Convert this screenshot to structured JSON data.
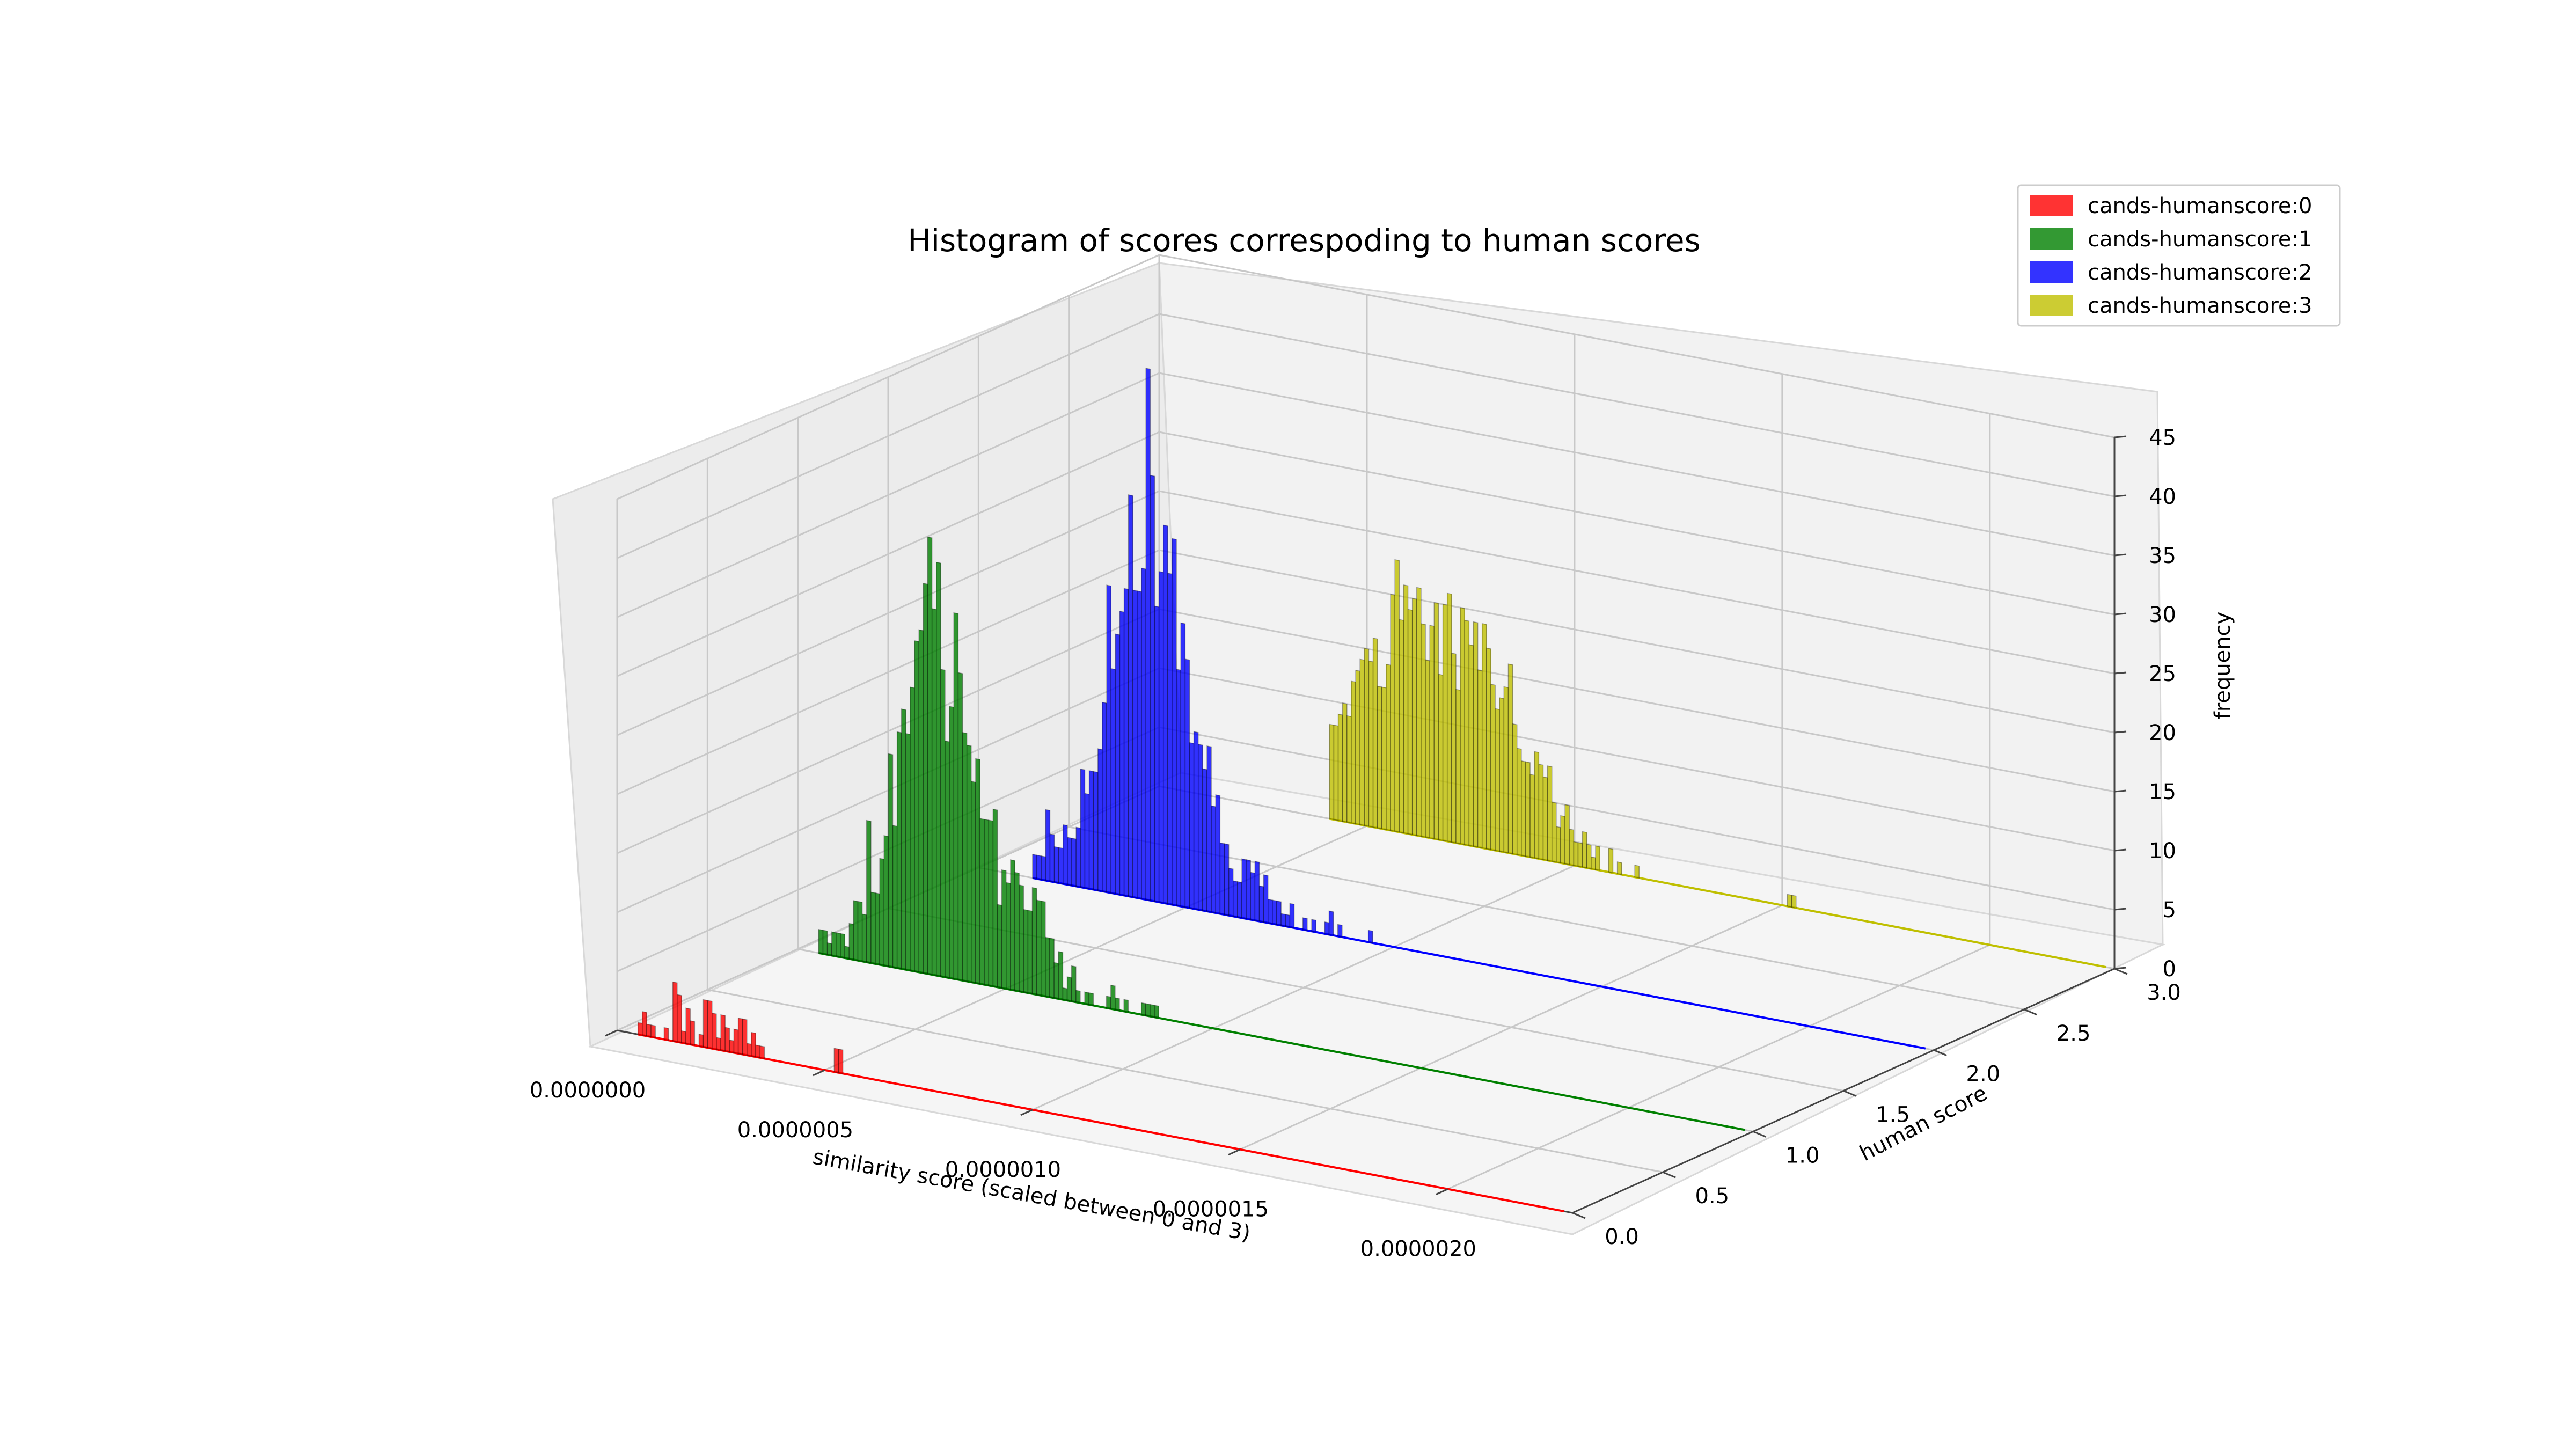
{
  "chart_data": {
    "type": "bar",
    "title": "Histogram of scores correspoding to human scores",
    "xlabel": "similarity score (scaled between 0 and 3)",
    "ylabel": "human score",
    "zlabel": "frequency",
    "xlim": [
      0,
      2.3e-06
    ],
    "ylim": [
      0,
      3
    ],
    "zlim": [
      0,
      45
    ],
    "xticks": [
      "0.0000000",
      "0.0000005",
      "0.0000010",
      "0.0000015",
      "0.0000020"
    ],
    "xtick_values": [
      0,
      5e-07,
      1e-06,
      1.5e-06,
      2e-06
    ],
    "yticks": [
      "0.0",
      "0.5",
      "1.0",
      "1.5",
      "2.0",
      "2.5",
      "3.0"
    ],
    "ytick_values": [
      0,
      0.5,
      1,
      1.5,
      2,
      2.5,
      3
    ],
    "zticks": [
      "0",
      "5",
      "10",
      "15",
      "20",
      "25",
      "30",
      "35",
      "40",
      "45"
    ],
    "ztick_values": [
      0,
      5,
      10,
      15,
      20,
      25,
      30,
      35,
      40,
      45
    ],
    "legend_position": "top-right",
    "series": [
      {
        "name": "cands-humanscore:0",
        "color": "#ff0000",
        "human_score": 0,
        "bin_start": 5e-08,
        "bin_width": 1.05e-08,
        "line_end": 2.28e-06,
        "counts": [
          1,
          2,
          1,
          1,
          0,
          0,
          1,
          0,
          5,
          4,
          1,
          3,
          2,
          0,
          1,
          4,
          4,
          3,
          1,
          3,
          2,
          1,
          2,
          3,
          3,
          1,
          2,
          1,
          1,
          0,
          0,
          0,
          0,
          0,
          0,
          0,
          0,
          0,
          0,
          0,
          0,
          0,
          0,
          0,
          0,
          2,
          2
        ]
      },
      {
        "name": "cands-humanscore:1",
        "color": "#008000",
        "human_score": 1,
        "bin_start": 5e-08,
        "bin_width": 1.05e-08,
        "line_end": 2.28e-06,
        "counts": [
          2,
          2,
          1,
          2,
          2,
          2,
          1,
          3,
          5,
          5,
          4,
          12,
          6,
          6,
          9,
          11,
          18,
          12,
          20,
          22,
          20,
          24,
          28,
          29,
          33,
          37,
          31,
          35,
          26,
          20,
          23,
          31,
          26,
          21,
          20,
          17,
          19,
          14,
          14,
          14,
          15,
          7,
          10,
          9,
          11,
          10,
          9,
          7,
          7,
          9,
          8,
          8,
          5,
          5,
          3,
          4,
          1,
          2,
          3,
          1,
          0,
          1,
          1,
          0,
          0,
          0,
          1,
          2,
          1,
          0,
          1,
          0,
          0,
          0,
          1,
          1,
          1,
          1,
          0
        ]
      },
      {
        "name": "cands-humanscore:2",
        "color": "#0000ff",
        "human_score": 2,
        "bin_start": 1.3e-07,
        "bin_width": 1.05e-08,
        "line_end": 2.28e-06,
        "counts": [
          2,
          2,
          2,
          6,
          4,
          3,
          3,
          5,
          4,
          4,
          5,
          10,
          8,
          10,
          10,
          12,
          16,
          26,
          19,
          22,
          24,
          26,
          34,
          26,
          26,
          28,
          45,
          36,
          25,
          28,
          32,
          28,
          31,
          20,
          24,
          21,
          14,
          15,
          14,
          12,
          14,
          9,
          10,
          6,
          6,
          4,
          3,
          3,
          5,
          5,
          4,
          5,
          3,
          4,
          2,
          2,
          2,
          1,
          1,
          2,
          0,
          0,
          1,
          0,
          1,
          0,
          0,
          1,
          2,
          0,
          1,
          0,
          0,
          0,
          0,
          0,
          0,
          1
        ]
      },
      {
        "name": "cands-humanscore:3",
        "color": "#bfbf00",
        "human_score": 3,
        "bin_start": 4.1e-07,
        "bin_width": 1.05e-08,
        "line_end": 2.28e-06,
        "counts": [
          8,
          8,
          9,
          10,
          9,
          12,
          13,
          14,
          15,
          14,
          16,
          12,
          12,
          14,
          20,
          23,
          18,
          21,
          19,
          20,
          21,
          18,
          15,
          18,
          20,
          14,
          20,
          21,
          16,
          13,
          20,
          19,
          17,
          19,
          15,
          19,
          17,
          14,
          12,
          13,
          14,
          16,
          11,
          9,
          8,
          8,
          7,
          9,
          8,
          7,
          8,
          5,
          3,
          4,
          5,
          3,
          2,
          2,
          3,
          2,
          1,
          2,
          0,
          0,
          2,
          0,
          1,
          0,
          0,
          0,
          1,
          0,
          0,
          0,
          0,
          0,
          0,
          0,
          0,
          0,
          0,
          0,
          0,
          0,
          0,
          0,
          0,
          0,
          0,
          0,
          0,
          0,
          0,
          0,
          0,
          0,
          0,
          0,
          0,
          0,
          0,
          0,
          0,
          0,
          0,
          1,
          1
        ]
      }
    ]
  }
}
